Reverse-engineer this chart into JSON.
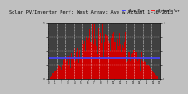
{
  "title": "Solar PV/Inverter Perf: West Array: Ave & Actual 1-16-2013",
  "bg_color": "#c0c0c0",
  "plot_bg": "#404040",
  "bar_color": "#cc0000",
  "avg_line_color": "#4444ff",
  "avg_value": 0.38,
  "num_points": 288,
  "ylim": [
    0,
    1.0
  ],
  "title_fontsize": 3.8,
  "legend_actual": "Actual Pwr",
  "legend_avg": "Ave Pwr",
  "legend_color_actual": "#ff2020",
  "legend_color_avg": "#4444ff",
  "grid_color": "#ffffff",
  "ylabel_color": "#000000",
  "xlabel_color": "#000000"
}
